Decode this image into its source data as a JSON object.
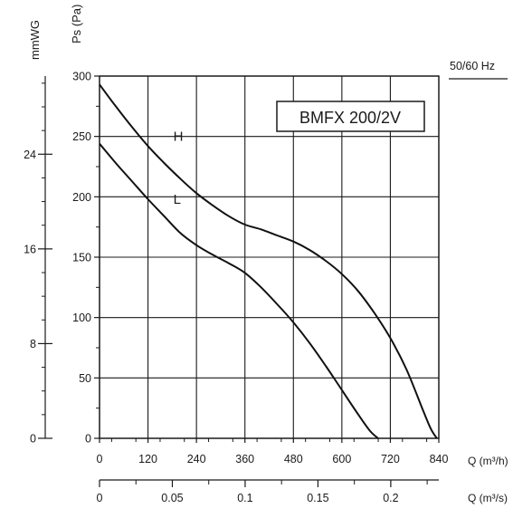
{
  "chart_data": {
    "type": "line",
    "model_label": "BMFX 200/2V",
    "frequency_label": "50/60 Hz",
    "y_title": "Ps (Pa)",
    "y2_title": "mmWG",
    "x_title": "Q (m³/h)",
    "x2_title": "Q (m³/s)",
    "xlim": [
      0,
      840
    ],
    "ylim": [
      0,
      300
    ],
    "x_ticks": [
      "0",
      "120",
      "240",
      "360",
      "480",
      "600",
      "720",
      "840"
    ],
    "y_ticks": [
      "0",
      "50",
      "100",
      "150",
      "200",
      "250",
      "300"
    ],
    "y2_ticks": [
      "0",
      "8",
      "16",
      "24"
    ],
    "x2_ticks": [
      "0",
      "0.05",
      "0.1",
      "0.15",
      "0.2"
    ],
    "x2_max": 0.233,
    "y2_max": 30.6,
    "grid": true,
    "series": [
      {
        "name": "H",
        "x": [
          0,
          40,
          80,
          120,
          160,
          200,
          240,
          280,
          320,
          360,
          400,
          440,
          480,
          520,
          560,
          600,
          640,
          680,
          720,
          760,
          800,
          820,
          835
        ],
        "y": [
          293,
          275,
          258,
          242,
          228,
          215,
          203,
          193,
          184,
          177,
          173,
          168,
          163,
          156,
          147,
          136,
          122,
          104,
          83,
          57,
          24,
          8,
          0
        ]
      },
      {
        "name": "L",
        "x": [
          0,
          40,
          80,
          120,
          160,
          200,
          240,
          280,
          320,
          360,
          400,
          440,
          480,
          520,
          560,
          600,
          640,
          670,
          690
        ],
        "y": [
          244,
          228,
          213,
          198,
          184,
          170,
          160,
          152,
          145,
          137,
          125,
          111,
          96,
          79,
          60,
          40,
          20,
          6,
          0
        ]
      }
    ]
  }
}
